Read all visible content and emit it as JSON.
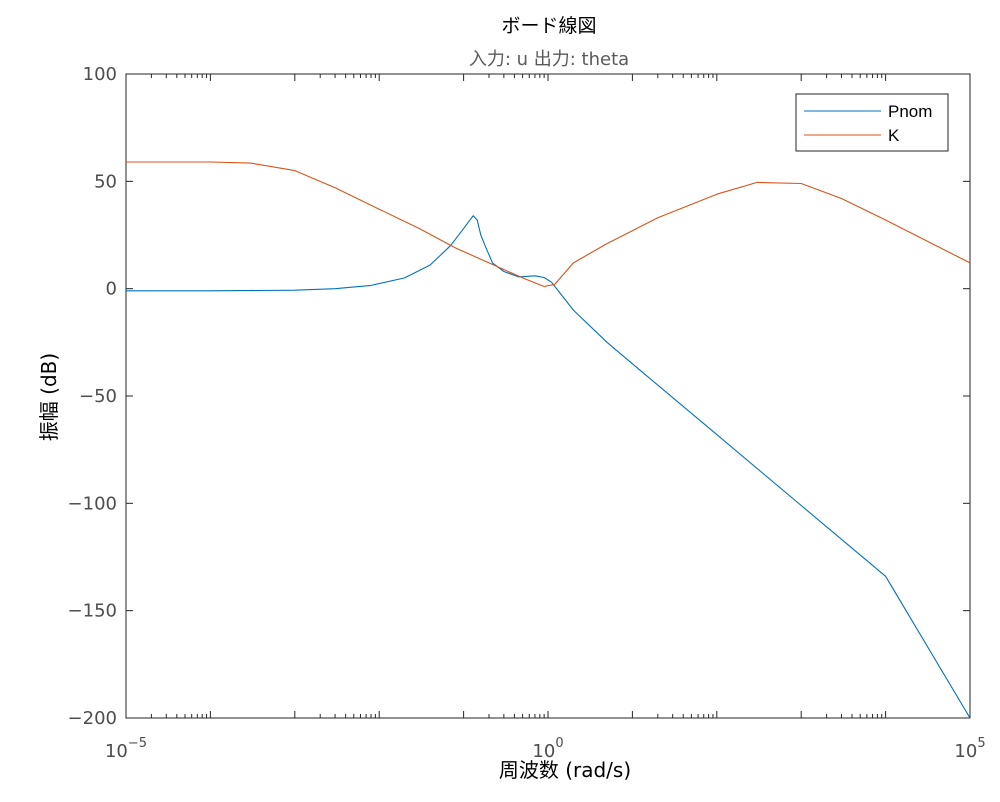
{
  "chart_data": {
    "type": "line",
    "title": "ボード線図",
    "subtitle": "入力: u  出力: theta",
    "xlabel": "周波数  (rad/s)",
    "ylabel": "振幅 (dB)",
    "xscale": "log",
    "xlim": [
      1e-05,
      100000
    ],
    "ylim": [
      -200,
      100
    ],
    "yticks": [
      100,
      50,
      0,
      -50,
      -100,
      -150,
      -200
    ],
    "ytick_labels": [
      "100",
      "50",
      "0",
      "−50",
      "−100",
      "−150",
      "−200"
    ],
    "xticks": [
      {
        "value": 1e-05,
        "base": "10",
        "exp": "−5"
      },
      {
        "value": 1,
        "base": "10",
        "exp": "0"
      },
      {
        "value": 100000,
        "base": "10",
        "exp": "5"
      }
    ],
    "grid": false,
    "legend_position": "top-right",
    "series": [
      {
        "name": "Pnom",
        "color": "#0072BD",
        "x": [
          1e-05,
          0.0001,
          0.001,
          0.003,
          0.008,
          0.02,
          0.04,
          0.07,
          0.1,
          0.13,
          0.145,
          0.16,
          0.18,
          0.22,
          0.3,
          0.45,
          0.7,
          0.9,
          1.1,
          2,
          5,
          10,
          100,
          1000,
          10000,
          100000
        ],
        "y": [
          -1,
          -1,
          -0.7,
          0,
          1.5,
          5,
          11,
          20,
          28,
          34,
          32,
          25,
          20,
          12,
          8,
          5.5,
          6,
          5.2,
          3,
          -10,
          -25,
          -35,
          -68,
          -101,
          -134,
          -200
        ]
      },
      {
        "name": "K",
        "color": "#D95319",
        "x": [
          1e-05,
          0.0001,
          0.0003,
          0.001,
          0.003,
          0.01,
          0.03,
          0.08,
          0.2,
          0.5,
          0.9,
          1.2,
          2,
          5,
          20,
          100,
          300,
          1000,
          3000,
          10000,
          100000
        ],
        "y": [
          59,
          59,
          58.5,
          55,
          47,
          37,
          28,
          19,
          12,
          5,
          1,
          2,
          12,
          21,
          33,
          44,
          49.5,
          49,
          42,
          32,
          12
        ]
      }
    ]
  }
}
